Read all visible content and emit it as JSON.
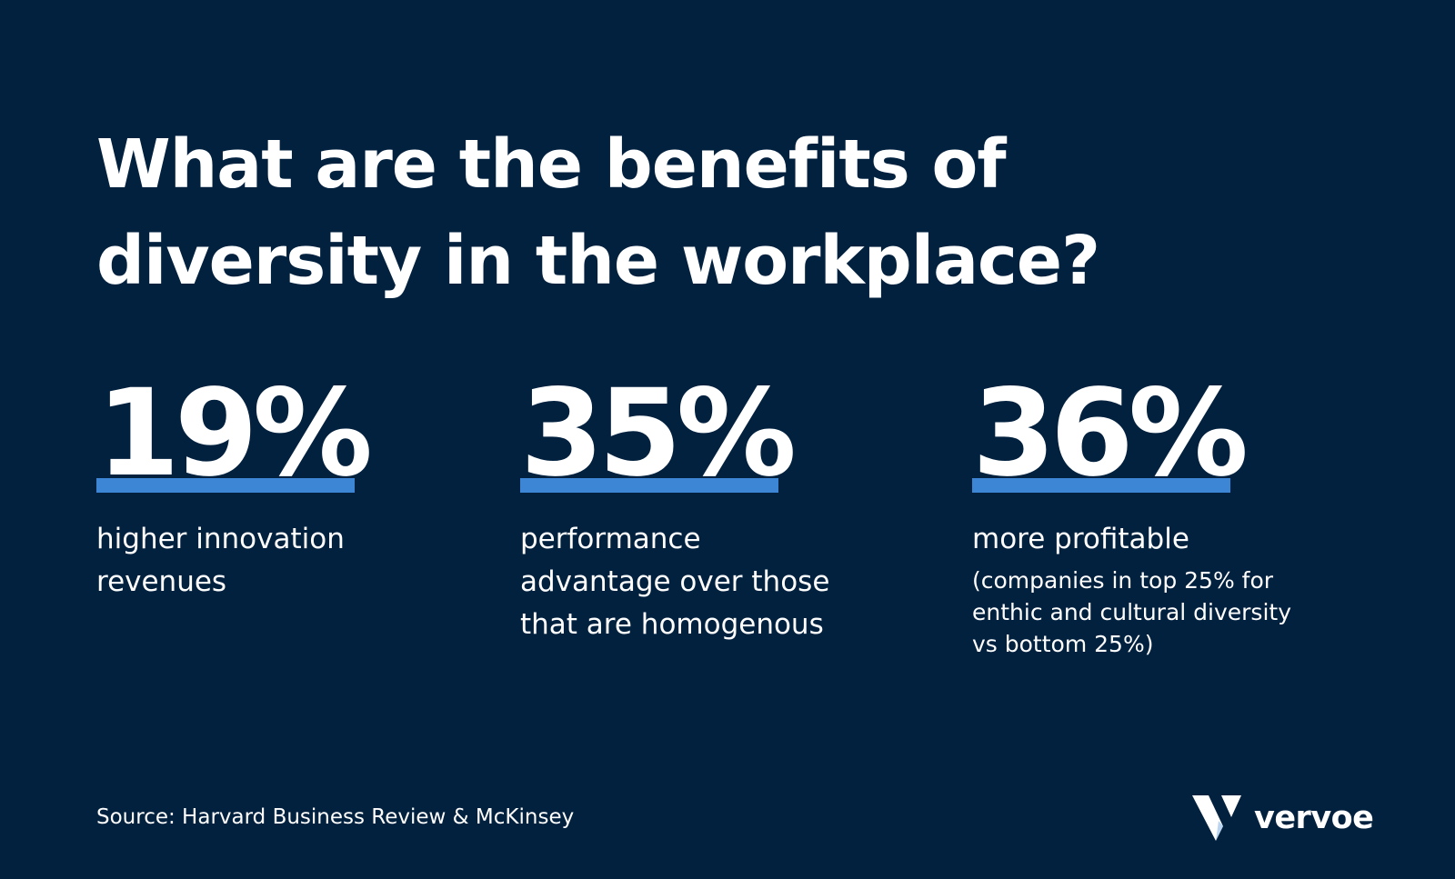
{
  "headline": {
    "line1": "What are the benefits of",
    "line2": "diversity in the workplace?"
  },
  "stats": [
    {
      "value": "19%",
      "caption_lines": [
        "higher innovation",
        "revenues"
      ],
      "note_lines": []
    },
    {
      "value": "35%",
      "caption_lines": [
        "performance",
        "advantage over those",
        "that are homogenous"
      ],
      "note_lines": []
    },
    {
      "value": "36%",
      "caption_lines": [
        "more profitable"
      ],
      "note_lines": [
        "(companies in top 25% for",
        "enthic and cultural diversity",
        "vs bottom 25%)"
      ]
    }
  ],
  "source": "Source: Harvard Business Review & McKinsey",
  "brand": {
    "name": "vervoe",
    "icon": "vervoe-logo-icon"
  },
  "colors": {
    "background": "#02213f",
    "text": "#ffffff",
    "accent": "#3d86d6"
  }
}
